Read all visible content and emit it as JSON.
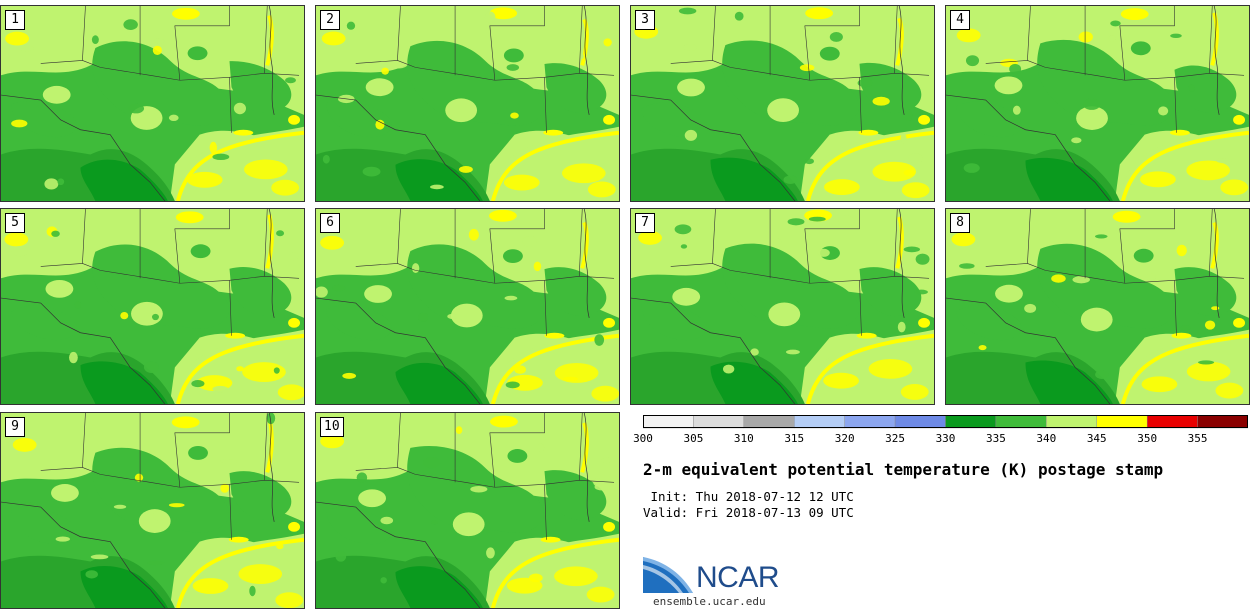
{
  "panels": [
    {
      "label": "1"
    },
    {
      "label": "2"
    },
    {
      "label": "3"
    },
    {
      "label": "4"
    },
    {
      "label": "5"
    },
    {
      "label": "6"
    },
    {
      "label": "7"
    },
    {
      "label": "8"
    },
    {
      "label": "9"
    },
    {
      "label": "10"
    }
  ],
  "legend": {
    "ticks": [
      "300",
      "305",
      "310",
      "315",
      "320",
      "325",
      "330",
      "335",
      "340",
      "345",
      "350",
      "355"
    ],
    "colors": [
      "#f2f2f2",
      "#dcdcdc",
      "#a8a8a8",
      "#b4cdf5",
      "#8ca6ef",
      "#6e8ae6",
      "#0a9a1e",
      "#3fbb3a",
      "#bff36f",
      "#ffff00",
      "#e80000",
      "#8a0000"
    ]
  },
  "title": "2-m equivalent potential temperature (K) postage stamp",
  "init_line": " Init: Thu 2018-07-12 12 UTC",
  "valid_line": "Valid: Fri 2018-07-13 09 UTC",
  "logo": {
    "text": "NCAR",
    "colors": {
      "swoosh": "#1f6fbf",
      "text": "#1f4c8b"
    }
  },
  "website": "ensemble.ucar.edu"
}
